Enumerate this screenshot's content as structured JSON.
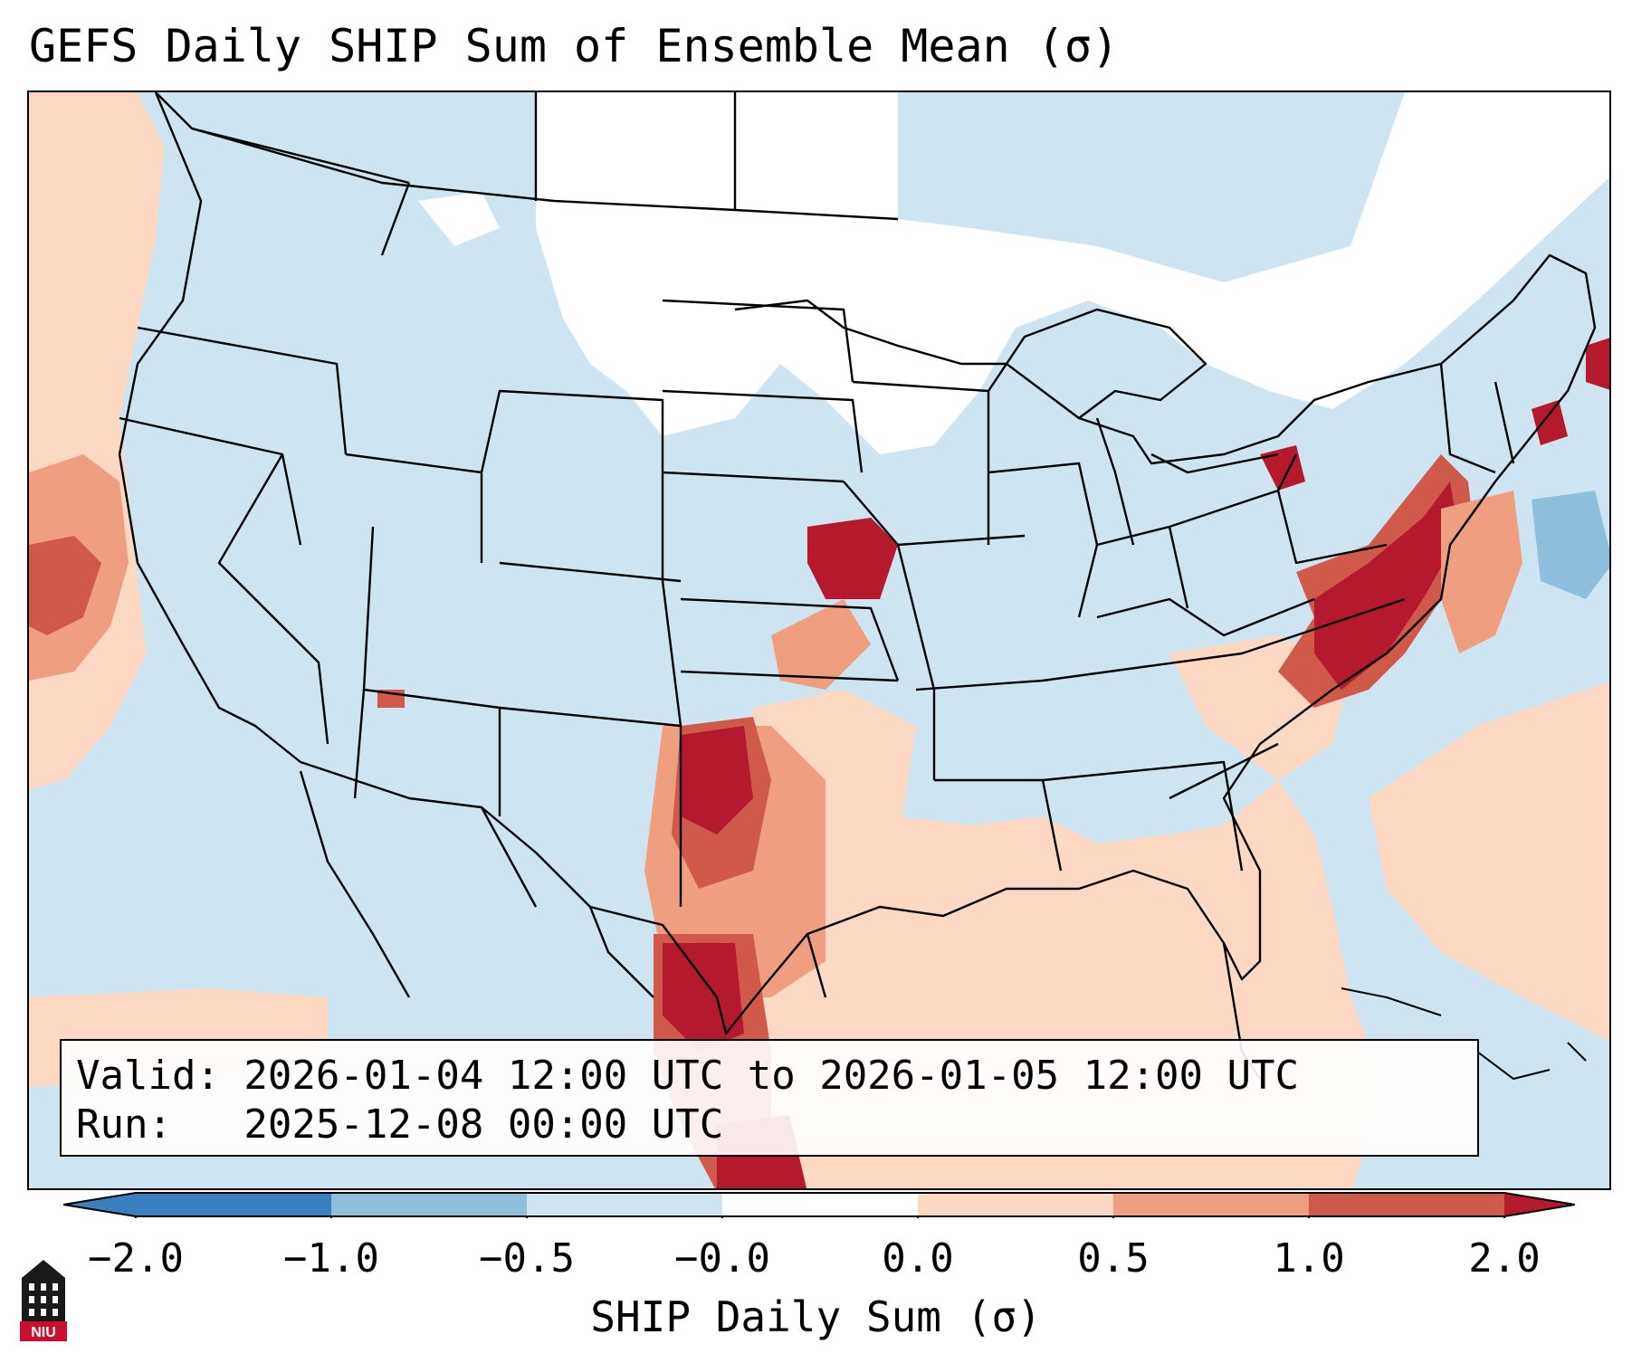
{
  "title": "GEFS Daily SHIP Sum of Ensemble Mean (σ)",
  "info": {
    "valid": "Valid: 2026-01-04 12:00 UTC to 2026-01-05 12:00 UTC",
    "run": "Run:   2025-12-08 00:00 UTC"
  },
  "colorbar": {
    "title": "SHIP Daily Sum (σ)",
    "ticks": [
      "−2.0",
      "−1.0",
      "−0.5",
      "−0.0",
      "0.0",
      "0.5",
      "1.0",
      "2.0"
    ],
    "colors": [
      "#3a7fc0",
      "#8ec0de",
      "#cfe4f1",
      "#ffffff",
      "#fdd9c4",
      "#ef9f7f",
      "#d05a4a",
      "#b5192d"
    ]
  },
  "logo": {
    "text": "NIU"
  },
  "map": {
    "region": "Contiguous United States",
    "background_color": "#cfe4f1",
    "ocean_positive_color": "#fdd9c4"
  }
}
